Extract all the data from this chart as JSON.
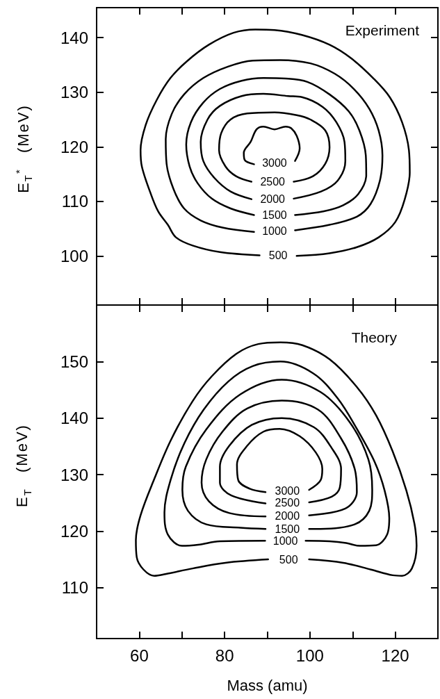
{
  "chart_data": [
    {
      "type": "line",
      "title": "Experiment",
      "ylabel": "E$_{T}$$^{*}$ (MeV)",
      "xlim": [
        50,
        130
      ],
      "xticks": [
        60,
        {
          "value": 70,
          "label": null
        },
        80,
        {
          "value": 90,
          "label": null
        },
        100,
        {
          "value": 110,
          "label": null
        },
        120
      ],
      "ylim": [
        91,
        145.5
      ],
      "yticks": [
        100,
        110,
        120,
        130,
        140
      ],
      "tick_labels": "y",
      "series": [
        {
          "name": "500",
          "color": "#000000",
          "x": [
            96.9,
            104.6,
            111.0,
            116.1,
            120.0,
            122.2,
            123.4,
            123.2,
            121.6,
            118.7,
            114.8,
            109.7,
            104.6,
            98.1,
            91.7,
            87.2,
            82.1,
            76.3,
            71.2,
            67.3,
            64.1,
            61.5,
            60.3,
            60.6,
            62.5,
            64.4,
            66.7,
            68.6,
            72.5,
            78.9,
            88.2
          ],
          "values": [
            100.0,
            100.5,
            101.6,
            103.4,
            106.2,
            110.3,
            115.3,
            119.4,
            124.5,
            129.1,
            132.6,
            136.2,
            138.7,
            140.5,
            141.4,
            141.5,
            140.9,
            138.7,
            135.7,
            132.6,
            128.6,
            124.0,
            119.4,
            116.4,
            111.8,
            108.2,
            105.7,
            103.4,
            101.9,
            100.7,
            100.1
          ]
        },
        {
          "name": "1000",
          "color": "#000000",
          "x": [
            96.5,
            104.6,
            111.0,
            114.2,
            116.4,
            117.0,
            116.1,
            113.9,
            110.3,
            105.8,
            100.1,
            93.0,
            86.6,
            80.8,
            75.0,
            70.5,
            67.6,
            66.2,
            66.4,
            68.0,
            70.5,
            74.4,
            79.5,
            86.9
          ],
          "values": [
            104.7,
            105.7,
            107.2,
            109.5,
            113.8,
            118.4,
            123.0,
            127.0,
            130.6,
            133.4,
            135.3,
            135.9,
            135.8,
            134.7,
            132.6,
            129.6,
            126.0,
            121.4,
            116.9,
            112.3,
            108.7,
            106.5,
            105.2,
            104.4
          ]
        },
        {
          "name": "1500",
          "color": "#000000",
          "x": [
            96.5,
            103.3,
            107.8,
            111.3,
            113.2,
            113.1,
            111.6,
            109.1,
            104.6,
            99.4,
            94.3,
            89.1,
            84.0,
            78.9,
            75.0,
            72.1,
            71.0,
            71.8,
            73.7,
            77.0,
            81.4,
            86.9
          ],
          "values": [
            107.5,
            108.2,
            109.3,
            111.3,
            114.8,
            118.4,
            123.0,
            126.5,
            129.6,
            131.9,
            132.5,
            132.6,
            132.1,
            130.6,
            128.1,
            124.5,
            120.4,
            116.4,
            113.3,
            110.5,
            108.7,
            107.5
          ]
        },
        {
          "name": "2000",
          "color": "#000000",
          "x": [
            96.2,
            102.6,
            106.5,
            108.3,
            108.1,
            106.2,
            103.0,
            98.1,
            94.9,
            89.1,
            84.0,
            78.9,
            76.0,
            74.4,
            75.0,
            77.6,
            81.4,
            86.3
          ],
          "values": [
            110.5,
            111.8,
            113.8,
            117.4,
            120.9,
            124.5,
            127.3,
            129.1,
            129.3,
            129.7,
            129.3,
            127.5,
            125.0,
            120.9,
            117.4,
            114.3,
            111.8,
            110.4
          ]
        },
        {
          "name": "2500",
          "color": "#000000",
          "x": [
            96.2,
            100.7,
            103.6,
            104.6,
            103.6,
            100.1,
            96.9,
            91.7,
            85.3,
            81.4,
            79.2,
            78.7,
            80.2,
            82.7,
            86.3
          ],
          "values": [
            113.6,
            114.6,
            116.9,
            119.9,
            123.0,
            125.0,
            125.8,
            126.3,
            126.1,
            125.0,
            122.5,
            119.4,
            116.4,
            114.6,
            113.6
          ]
        },
        {
          "name": "3000",
          "color": "#000000",
          "x": [
            96.5,
            97.6,
            96.9,
            95.6,
            94.3,
            91.7,
            89.1,
            87.5,
            86.1,
            84.5,
            84.7,
            86.9
          ],
          "values": [
            117.4,
            119.7,
            122.0,
            123.4,
            123.7,
            123.2,
            123.7,
            123.2,
            120.9,
            118.9,
            117.6,
            116.8
          ]
        }
      ]
    },
    {
      "type": "line",
      "title": "Theory",
      "xlabel": "Mass (amu)",
      "ylabel": "E$_{T}$ (MeV)",
      "xlim": [
        50,
        130
      ],
      "xticks": [
        60,
        {
          "value": 70,
          "label": null
        },
        80,
        {
          "value": 90,
          "label": null
        },
        100,
        {
          "value": 110,
          "label": null
        },
        120
      ],
      "ylim": [
        101,
        160
      ],
      "yticks": [
        110,
        120,
        130,
        140,
        150
      ],
      "series": [
        {
          "name": "500",
          "color": "#000000",
          "x": [
            99.8,
            107.8,
            114.3,
            119.4,
            121.6,
            123.9,
            125.0,
            124.5,
            122.6,
            119.4,
            115.5,
            111.0,
            104.6,
            98.2,
            93.1,
            87.9,
            82.8,
            77.0,
            72.5,
            67.4,
            63.5,
            60.3,
            59.2,
            59.4,
            61.0,
            63.5,
            66.1,
            72.5,
            80.2,
            90.2
          ],
          "values": [
            115.0,
            114.4,
            113.2,
            112.2,
            112.1,
            113.4,
            117.4,
            121.3,
            127.2,
            134.1,
            140.5,
            145.5,
            150.4,
            152.9,
            153.4,
            153.1,
            151.4,
            147.4,
            143.0,
            136.1,
            129.2,
            122.8,
            118.4,
            115.4,
            113.2,
            112.1,
            112.4,
            113.4,
            114.4,
            115.0
          ]
        },
        {
          "name": "1000",
          "color": "#000000",
          "x": [
            99.0,
            104.6,
            108.5,
            111.7,
            115.5,
            118.1,
            118.6,
            117.5,
            115.2,
            111.0,
            106.5,
            100.8,
            93.1,
            86.6,
            80.9,
            75.1,
            70.6,
            67.4,
            65.9,
            66.7,
            70.0,
            73.8,
            78.9,
            89.5
          ],
          "values": [
            118.3,
            118.2,
            117.9,
            117.4,
            117.5,
            119.4,
            122.3,
            127.2,
            132.2,
            138.1,
            143.5,
            147.9,
            150.0,
            149.2,
            146.5,
            141.5,
            135.6,
            129.2,
            123.3,
            119.4,
            117.4,
            117.6,
            118.2,
            118.3
          ]
        },
        {
          "name": "1500",
          "color": "#000000",
          "x": [
            99.8,
            102.5,
            110.5,
            113.9,
            114.6,
            113.7,
            109.4,
            102.5,
            93.4,
            83.7,
            75.7,
            70.9,
            70.1,
            71.4,
            75.7,
            83.7,
            89.6
          ],
          "values": [
            120.4,
            120.4,
            121.2,
            123.6,
            127.3,
            132.7,
            139.2,
            144.6,
            146.8,
            144.2,
            138.0,
            131.4,
            127.3,
            123.6,
            121.2,
            120.6,
            120.4
          ]
        },
        {
          "name": "2000",
          "color": "#000000",
          "x": [
            99.8,
            108.3,
            111.0,
            110.5,
            107.3,
            101.9,
            93.4,
            85.3,
            79.5,
            75.7,
            74.6,
            76.3,
            81.1,
            89.6
          ],
          "values": [
            122.8,
            124.0,
            126.9,
            131.0,
            136.4,
            141.5,
            143.1,
            141.7,
            137.6,
            132.7,
            128.6,
            125.3,
            123.2,
            122.6
          ]
        },
        {
          "name": "2500",
          "color": "#000000",
          "x": [
            99.8,
            105.1,
            107.0,
            107.3,
            105.1,
            100.9,
            93.4,
            86.4,
            81.1,
            78.9,
            78.9,
            81.6,
            89.6
          ],
          "values": [
            125.1,
            126.1,
            127.7,
            131.0,
            134.7,
            138.4,
            140.0,
            138.8,
            135.1,
            131.4,
            128.6,
            126.3,
            124.9
          ]
        },
        {
          "name": "3000",
          "color": "#000000",
          "x": [
            99.8,
            102.5,
            102.9,
            101.4,
            97.6,
            92.9,
            89.1,
            85.3,
            82.9,
            83.2,
            85.9,
            89.6
          ],
          "values": [
            127.3,
            129.0,
            131.0,
            133.9,
            136.8,
            138.1,
            137.6,
            135.1,
            131.8,
            129.0,
            127.5,
            126.9
          ]
        }
      ]
    }
  ]
}
